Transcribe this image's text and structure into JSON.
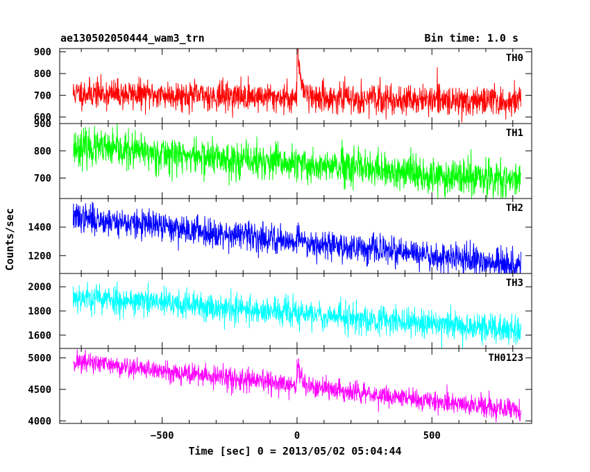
{
  "header": {
    "left_title": "ae130502050444_wam3_trn",
    "right_title": "Bin time: 1.0 s"
  },
  "chart_data": {
    "type": "line",
    "subtype": "stacked light curves",
    "xlabel": "Time [sec] 0 = 2013/05/02 05:04:44",
    "ylabel": "Counts/sec",
    "xlim": [
      -880,
      870
    ],
    "x_range": [
      -830,
      830
    ],
    "x_step": 1.0,
    "x_ticks": [
      -500,
      0,
      500
    ],
    "x_tick_labels": [
      "−500",
      "0",
      "500"
    ],
    "panels": [
      {
        "name": "TH0",
        "color": "#ff0000",
        "ylim": [
          570,
          915
        ],
        "y_ticks": [
          600,
          700,
          800,
          900
        ],
        "y_tick_labels": [
          "600",
          "700",
          "800",
          "900"
        ],
        "trend_start": 710,
        "trend_end": 670,
        "noise": 33,
        "burst_peak": 230,
        "burst_decay": 16,
        "seed": 11
      },
      {
        "name": "TH1",
        "color": "#00ff00",
        "ylim": [
          625,
          900
        ],
        "y_ticks": [
          700,
          800,
          900
        ],
        "y_tick_labels": [
          "700",
          "800",
          "900"
        ],
        "trend_start": 815,
        "trend_end": 685,
        "noise": 33,
        "burst_peak": 0,
        "burst_decay": 16,
        "seed": 23
      },
      {
        "name": "TH2",
        "color": "#0000ff",
        "ylim": [
          1075,
          1600
        ],
        "y_ticks": [
          1200,
          1400
        ],
        "y_tick_labels": [
          "1200",
          "1400"
        ],
        "trend_start": 1470,
        "trend_end": 1130,
        "noise": 50,
        "burst_peak": 60,
        "burst_decay": 10,
        "seed": 37
      },
      {
        "name": "TH3",
        "color": "#00ffff",
        "ylim": [
          1490,
          2110
        ],
        "y_ticks": [
          1600,
          1800,
          2000
        ],
        "y_tick_labels": [
          "1600",
          "1800",
          "2000"
        ],
        "trend_start": 1920,
        "trend_end": 1640,
        "noise": 60,
        "burst_peak": 0,
        "burst_decay": 10,
        "seed": 53
      },
      {
        "name": "TH0123",
        "color": "#ff00ff",
        "ylim": [
          3960,
          5150
        ],
        "y_ticks": [
          4000,
          4500,
          5000
        ],
        "y_tick_labels": [
          "4000",
          "4500",
          "5000"
        ],
        "trend_start": 4950,
        "trend_end": 4160,
        "noise": 85,
        "burst_peak": 380,
        "burst_decay": 14,
        "seed": 71
      }
    ]
  }
}
